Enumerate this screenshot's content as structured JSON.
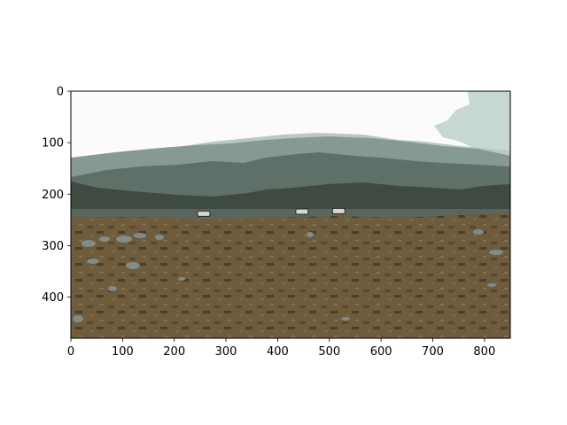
{
  "chart_data": {
    "type": "image",
    "title": "",
    "xlabel": "",
    "ylabel": "",
    "xlim": [
      0,
      850
    ],
    "ylim": [
      480,
      0
    ],
    "x_ticks": [
      0,
      100,
      200,
      300,
      400,
      500,
      600,
      700,
      800
    ],
    "y_ticks": [
      0,
      100,
      200,
      300,
      400
    ],
    "grid": false,
    "image": {
      "description": "posterized photo of a rocky brown field with grey-green mountain ridges under a pale sky and three small vehicles on a road",
      "colors": {
        "sky": "#fbfbf9",
        "cloud_patch": "#c6d8d0",
        "far_ridge": "#b7c9c0",
        "mid_ridge": "#869a92",
        "near_ridge": "#5f7068",
        "dark_hills": "#3f4a40",
        "road": "#59655d",
        "ground": "#6e5c3c",
        "ground_dark": "#4c3e2a",
        "rocks": "#7f8c89"
      },
      "vehicles": [
        {
          "label": "vehicle-1",
          "x": 257,
          "y": 238
        },
        {
          "label": "vehicle-2",
          "x": 447,
          "y": 234
        },
        {
          "label": "vehicle-3",
          "x": 518,
          "y": 233
        }
      ]
    }
  }
}
